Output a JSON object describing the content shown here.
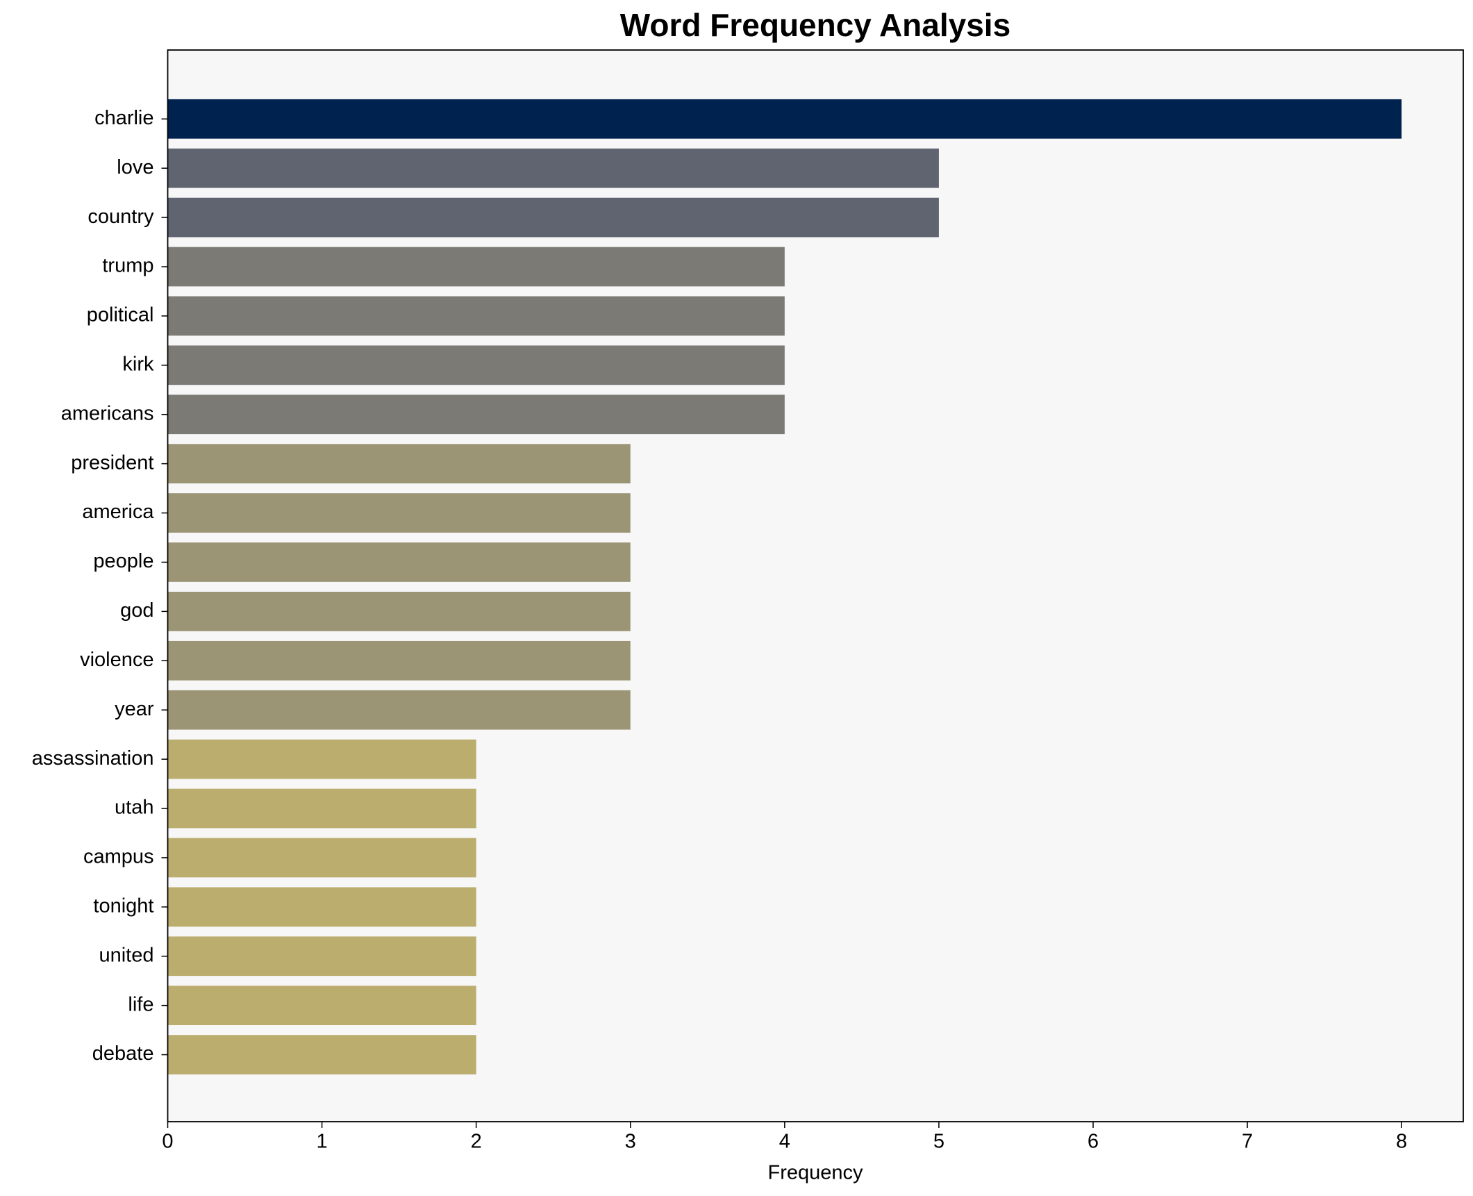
{
  "chart_data": {
    "type": "barh",
    "title": "Word Frequency Analysis",
    "x_label": "Frequency",
    "categories": [
      "charlie",
      "love",
      "country",
      "trump",
      "political",
      "kirk",
      "americans",
      "president",
      "america",
      "people",
      "god",
      "violence",
      "year",
      "assassination",
      "utah",
      "campus",
      "tonight",
      "united",
      "life",
      "debate"
    ],
    "values": [
      8,
      5,
      5,
      4,
      4,
      4,
      4,
      3,
      3,
      3,
      3,
      3,
      3,
      2,
      2,
      2,
      2,
      2,
      2,
      2
    ],
    "colors": [
      "#00224e",
      "#5f6470",
      "#5f6470",
      "#7b7a75",
      "#7b7a75",
      "#7b7a75",
      "#7b7a75",
      "#9b9575",
      "#9b9575",
      "#9b9575",
      "#9b9575",
      "#9b9575",
      "#9b9575",
      "#baad6e",
      "#baad6e",
      "#baad6e",
      "#baad6e",
      "#baad6e",
      "#baad6e",
      "#baad6e"
    ],
    "xlim": [
      0,
      8.4
    ],
    "xticks": [
      0,
      1,
      2,
      3,
      4,
      5,
      6,
      7,
      8
    ],
    "background": "#f7f7f7"
  }
}
